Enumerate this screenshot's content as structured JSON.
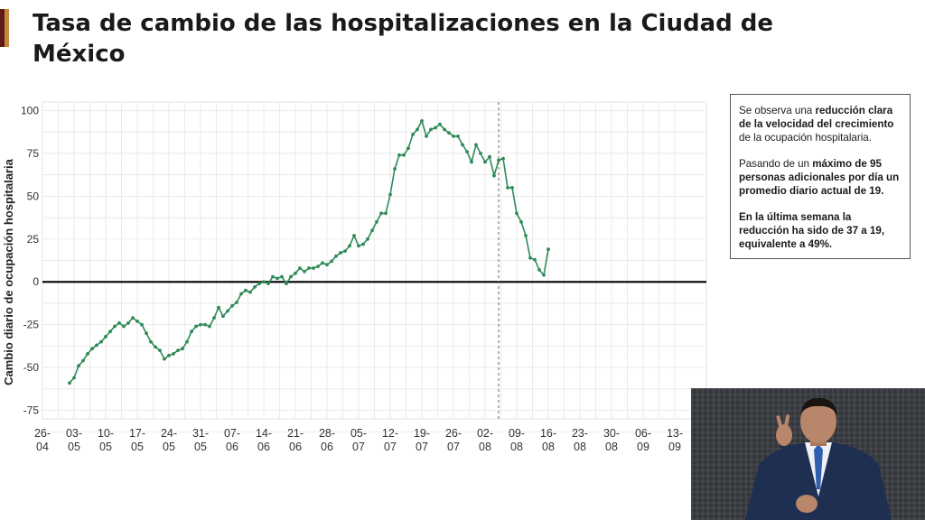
{
  "title": "Tasa de cambio de las hospitalizaciones en la Ciudad de México",
  "colors": {
    "line": "#2e8b57",
    "zero_line": "#111111",
    "grid": "#e6e6e6",
    "dashed": "#666666"
  },
  "note": {
    "p1": [
      "Se observa una ",
      "reducción clara de la velocidad del crecimiento",
      " de la ocupación hospitalaria."
    ],
    "p2": [
      "Pasando de un ",
      "máximo de 95 personas adicionales por día un promedio diario actual de 19."
    ],
    "p3": [
      "En la última semana la reducción ha sido de 37 a 19, equivalente a 49%."
    ]
  },
  "chart_data": {
    "type": "line",
    "ylabel": "Cambio diario de ocupación hospitalaria",
    "xlabel": "",
    "ylim": [
      -80,
      105
    ],
    "yticks": [
      -75,
      -50,
      -25,
      0,
      25,
      50,
      75,
      100
    ],
    "xlim": [
      "2020-04-26",
      "2020-09-20"
    ],
    "xticks": [
      {
        "date": "2020-04-26",
        "label": [
          "26-",
          "04"
        ]
      },
      {
        "date": "2020-05-03",
        "label": [
          "03-",
          "05"
        ]
      },
      {
        "date": "2020-05-10",
        "label": [
          "10-",
          "05"
        ]
      },
      {
        "date": "2020-05-17",
        "label": [
          "17-",
          "05"
        ]
      },
      {
        "date": "2020-05-24",
        "label": [
          "24-",
          "05"
        ]
      },
      {
        "date": "2020-05-31",
        "label": [
          "31-",
          "05"
        ]
      },
      {
        "date": "2020-06-07",
        "label": [
          "07-",
          "06"
        ]
      },
      {
        "date": "2020-06-14",
        "label": [
          "14-",
          "06"
        ]
      },
      {
        "date": "2020-06-21",
        "label": [
          "21-",
          "06"
        ]
      },
      {
        "date": "2020-06-28",
        "label": [
          "28-",
          "06"
        ]
      },
      {
        "date": "2020-07-05",
        "label": [
          "05-",
          "07"
        ]
      },
      {
        "date": "2020-07-12",
        "label": [
          "12-",
          "07"
        ]
      },
      {
        "date": "2020-07-19",
        "label": [
          "19-",
          "07"
        ]
      },
      {
        "date": "2020-07-26",
        "label": [
          "26-",
          "07"
        ]
      },
      {
        "date": "2020-08-02",
        "label": [
          "02-",
          "08"
        ]
      },
      {
        "date": "2020-08-09",
        "label": [
          "09-",
          "08"
        ]
      },
      {
        "date": "2020-08-16",
        "label": [
          "16-",
          "08"
        ]
      },
      {
        "date": "2020-08-23",
        "label": [
          "23-",
          "08"
        ]
      },
      {
        "date": "2020-08-30",
        "label": [
          "30-",
          "08"
        ]
      },
      {
        "date": "2020-09-06",
        "label": [
          "06-",
          "09"
        ]
      },
      {
        "date": "2020-09-13",
        "label": [
          "13-",
          "09"
        ]
      }
    ],
    "reference_line": "2020-08-05",
    "grid": true,
    "series": [
      {
        "start": "2020-05-02",
        "values": [
          -59,
          -56,
          -49,
          -46,
          -42,
          -39,
          -37,
          -35,
          -32,
          -29,
          -26,
          -24,
          -26,
          -24,
          -21,
          -23,
          -25,
          -30,
          -35,
          -38,
          -40,
          -45,
          -43,
          -42,
          -40,
          -39,
          -35,
          -29,
          -26,
          -25,
          -25,
          -26,
          -21,
          -15,
          -20,
          -17,
          -14,
          -12,
          -7,
          -5,
          -6,
          -3,
          -1,
          0,
          -1,
          3,
          2,
          3,
          -1,
          3,
          5,
          8,
          6,
          8,
          8,
          9,
          11,
          10,
          12,
          15,
          17,
          18,
          21,
          27,
          21,
          22,
          25,
          30,
          35,
          40,
          40,
          51,
          66,
          74,
          74,
          78,
          86,
          89,
          94,
          85,
          89,
          90,
          92,
          89,
          87,
          85,
          85,
          80,
          76,
          70,
          80,
          75,
          70,
          73,
          62,
          71,
          72,
          55,
          55,
          40,
          35,
          27,
          14,
          13,
          7,
          4,
          19
        ]
      }
    ]
  }
}
